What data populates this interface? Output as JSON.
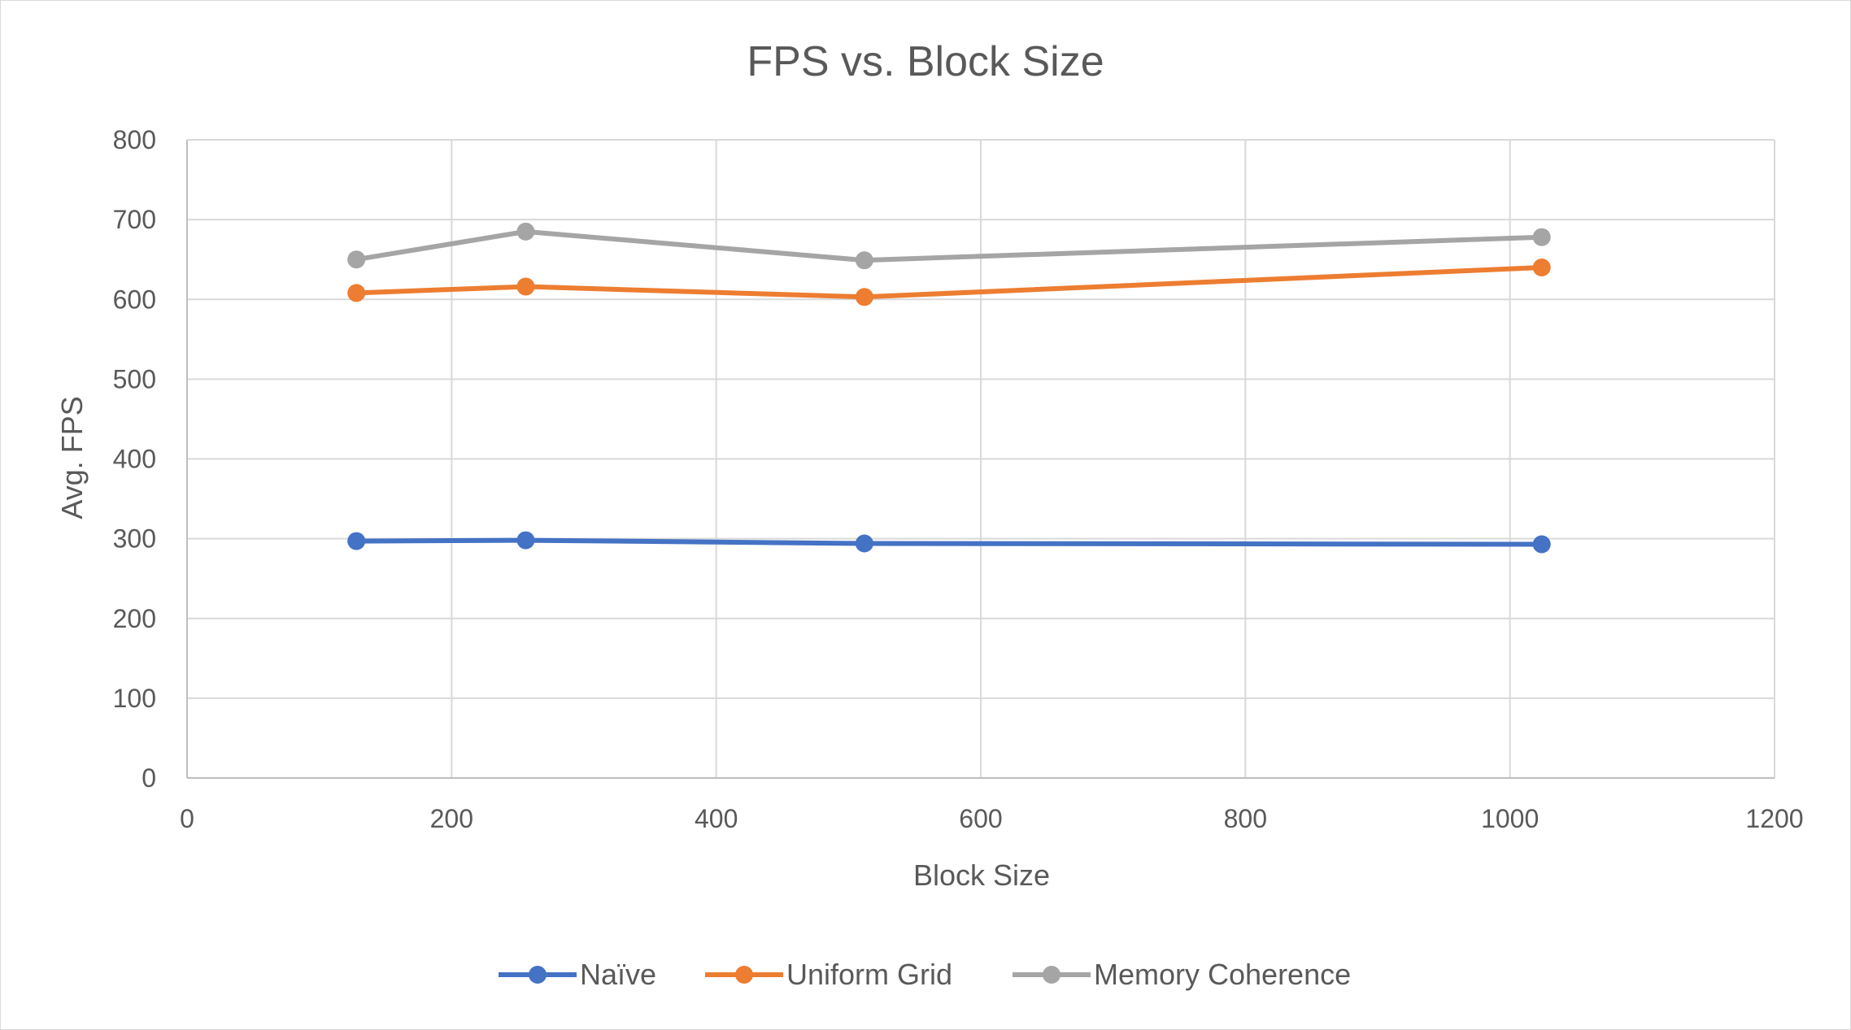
{
  "chart_data": {
    "type": "line",
    "title": "FPS vs. Block Size",
    "xlabel": "Block Size",
    "ylabel": "Avg. FPS",
    "xlim": [
      0,
      1200
    ],
    "ylim": [
      0,
      800
    ],
    "x_ticks": [
      0,
      200,
      400,
      600,
      800,
      1000,
      1200
    ],
    "y_ticks": [
      0,
      100,
      200,
      300,
      400,
      500,
      600,
      700,
      800
    ],
    "grid": true,
    "legend_position": "bottom",
    "x": [
      128,
      256,
      512,
      1024
    ],
    "series": [
      {
        "name": "Naïve",
        "color": "#4472C4",
        "values": [
          297,
          298,
          294,
          293
        ]
      },
      {
        "name": "Uniform Grid",
        "color": "#ED7D31",
        "values": [
          608,
          616,
          603,
          640
        ]
      },
      {
        "name": "Memory Coherence",
        "color": "#A5A5A5",
        "values": [
          650,
          685,
          649,
          678
        ]
      }
    ]
  }
}
